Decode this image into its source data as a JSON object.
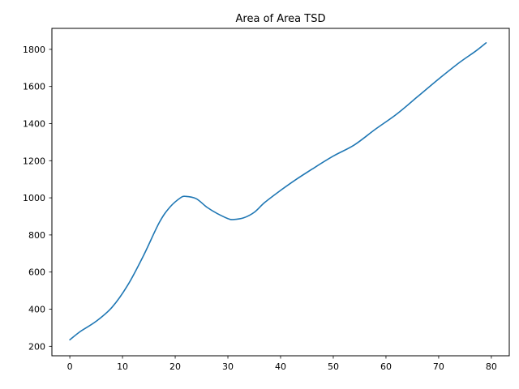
{
  "chart_data": {
    "type": "line",
    "title": "Area of Area TSD",
    "xlabel": "",
    "ylabel": "",
    "grid": false,
    "legend": null,
    "background_color": "#ffffff",
    "spine_color": "#000000",
    "xlim": [
      -3.4,
      83.4
    ],
    "ylim": [
      149,
      1913
    ],
    "x_ticks": [
      0,
      10,
      20,
      30,
      40,
      50,
      60,
      70,
      80
    ],
    "y_ticks": [
      200,
      400,
      600,
      800,
      1000,
      1200,
      1400,
      1600,
      1800
    ],
    "series": [
      {
        "name": "series-0",
        "color": "#1f77b4",
        "line_width": 1.6,
        "points": [
          [
            0,
            235
          ],
          [
            2,
            280
          ],
          [
            5,
            335
          ],
          [
            8,
            410
          ],
          [
            11,
            530
          ],
          [
            14,
            690
          ],
          [
            17,
            868
          ],
          [
            19,
            950
          ],
          [
            21,
            1000
          ],
          [
            22,
            1008
          ],
          [
            24,
            995
          ],
          [
            26,
            950
          ],
          [
            28,
            915
          ],
          [
            30,
            888
          ],
          [
            31,
            883
          ],
          [
            33,
            892
          ],
          [
            35,
            922
          ],
          [
            37,
            975
          ],
          [
            40,
            1040
          ],
          [
            43,
            1100
          ],
          [
            46,
            1155
          ],
          [
            50,
            1225
          ],
          [
            54,
            1285
          ],
          [
            58,
            1370
          ],
          [
            62,
            1450
          ],
          [
            66,
            1545
          ],
          [
            70,
            1640
          ],
          [
            74,
            1730
          ],
          [
            77,
            1790
          ],
          [
            79,
            1835
          ]
        ]
      }
    ]
  }
}
